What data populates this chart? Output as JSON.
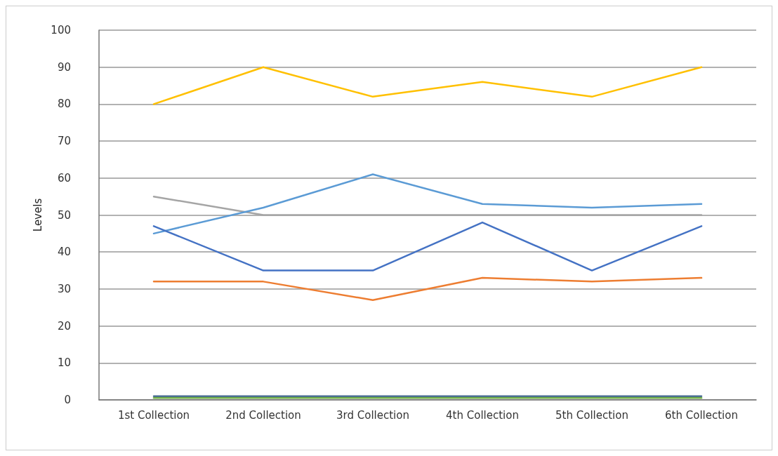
{
  "chart_data": {
    "type": "line",
    "ylabel": "Levels",
    "categories": [
      "1st Collection",
      "2nd Collection",
      "3rd Collection",
      "4th Collection",
      "5th Collection",
      "6th Collection"
    ],
    "series": [
      {
        "color": "#ffc000",
        "values": [
          80,
          90,
          82,
          86,
          82,
          90
        ]
      },
      {
        "color": "#a5a5a5",
        "values": [
          55,
          50,
          50,
          50,
          50,
          50
        ]
      },
      {
        "color": "#5b9bd5",
        "values": [
          45,
          52,
          61,
          53,
          52,
          53
        ]
      },
      {
        "color": "#4472c4",
        "values": [
          47,
          35,
          35,
          48,
          35,
          47
        ]
      },
      {
        "color": "#ed7d31",
        "values": [
          32,
          32,
          27,
          33,
          32,
          33
        ]
      },
      {
        "color": "#70ad47",
        "values": [
          0.5,
          0.5,
          0.5,
          0.5,
          0.5,
          0.5
        ]
      },
      {
        "color": "#4a6e91",
        "values": [
          1,
          1,
          1,
          1,
          1,
          1
        ]
      }
    ],
    "ylim": [
      0,
      100
    ],
    "yticks": [
      0,
      10,
      20,
      30,
      40,
      50,
      60,
      70,
      80,
      90,
      100
    ],
    "grid": "y",
    "marker": "none",
    "line_style": "solid"
  }
}
